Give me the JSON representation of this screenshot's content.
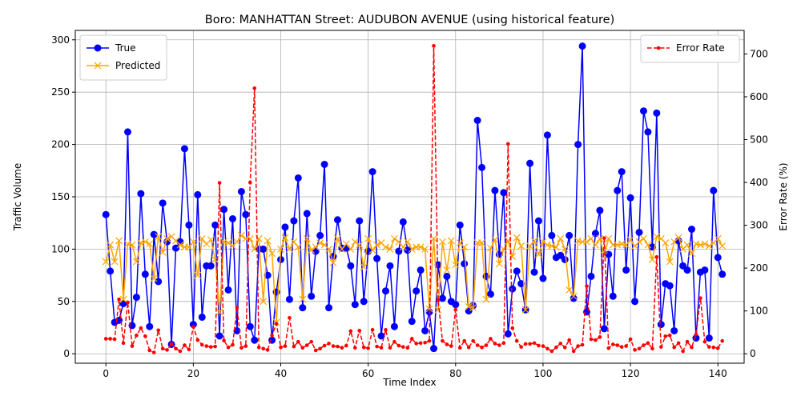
{
  "chart_data": {
    "type": "line",
    "title": "Boro: MANHATTAN Street: AUDUBON AVENUE (using historical feature)",
    "xlabel": "Time Index",
    "ylabel": "Traffic Volume",
    "y2label": "Error Rate (%)",
    "xlim": [
      -7,
      146
    ],
    "ylim": [
      -9,
      309
    ],
    "y2lim": [
      -22,
      755
    ],
    "xticks": [
      0,
      20,
      40,
      60,
      80,
      100,
      120,
      140
    ],
    "yticks": [
      0,
      50,
      100,
      150,
      200,
      250,
      300
    ],
    "y2ticks": [
      0,
      100,
      200,
      300,
      400,
      500,
      600,
      700
    ],
    "grid": true,
    "legend_left_placement": "upper-left",
    "legend_right_placement": "upper-right",
    "series": [
      {
        "name": "True",
        "axis": "left",
        "color": "#0000ff",
        "marker": "circle",
        "linestyle": "solid",
        "values": [
          133,
          79,
          30,
          32,
          48,
          212,
          27,
          54,
          153,
          76,
          26,
          114,
          69,
          144,
          107,
          9,
          101,
          107,
          196,
          123,
          28,
          152,
          35,
          84,
          84,
          123,
          17,
          138,
          61,
          129,
          22,
          155,
          133,
          26,
          13,
          100,
          100,
          75,
          13,
          59,
          90,
          121,
          52,
          127,
          168,
          44,
          134,
          55,
          98,
          113,
          181,
          44,
          93,
          128,
          101,
          101,
          84,
          47,
          127,
          50,
          98,
          174,
          91,
          17,
          60,
          84,
          26,
          98,
          126,
          99,
          31,
          60,
          80,
          22,
          40,
          5,
          85,
          53,
          74,
          50,
          47,
          123,
          86,
          41,
          46,
          223,
          178,
          74,
          57,
          156,
          95,
          154,
          19,
          62,
          79,
          67,
          42,
          182,
          78,
          127,
          72,
          209,
          113,
          92,
          94,
          90,
          113,
          53,
          200,
          294,
          40,
          74,
          115,
          137,
          24,
          95,
          55,
          156,
          174,
          80,
          149,
          50,
          116,
          232,
          212,
          102,
          230,
          28,
          67,
          65,
          22,
          108,
          84,
          80,
          119,
          15,
          78,
          80,
          15,
          156,
          92,
          76
        ]
      },
      {
        "name": "Predicted",
        "axis": "left",
        "color": "#ffa500",
        "marker": "x",
        "linestyle": "solid",
        "values": [
          88,
          104,
          88,
          108,
          52,
          105,
          104,
          88,
          106,
          107,
          105,
          72,
          112,
          97,
          110,
          112,
          108,
          104,
          102,
          102,
          107,
          75,
          110,
          105,
          109,
          90,
          40,
          107,
          106,
          103,
          107,
          113,
          110,
          110,
          100,
          110,
          50,
          108,
          96,
          30,
          100,
          111,
          100,
          107,
          102,
          52,
          110,
          99,
          102,
          106,
          104,
          100,
          87,
          110,
          100,
          105,
          100,
          107,
          104,
          83,
          110,
          99,
          104,
          106,
          102,
          100,
          110,
          107,
          102,
          107,
          100,
          102,
          102,
          100,
          43,
          110,
          42,
          107,
          80,
          108,
          85,
          106,
          102,
          45,
          44,
          106,
          106,
          52,
          101,
          109,
          86,
          100,
          108,
          93,
          111,
          103,
          42,
          103,
          108,
          95,
          107,
          104,
          103,
          102,
          110,
          100,
          61,
          55,
          108,
          107,
          107,
          110,
          104,
          110,
          94,
          110,
          104,
          104,
          105,
          104,
          109,
          103,
          107,
          110,
          104,
          90,
          112,
          110,
          106,
          88,
          107,
          111,
          100,
          104,
          96,
          105,
          104,
          105,
          103,
          106,
          110,
          103
        ]
      },
      {
        "name": "Error Rate",
        "axis": "right",
        "color": "#ff0000",
        "marker": "dot",
        "linestyle": "dashed",
        "values": [
          35,
          35,
          34,
          127,
          25,
          120,
          18,
          43,
          60,
          41,
          8,
          3,
          55,
          12,
          9,
          23,
          12,
          6,
          20,
          10,
          63,
          32,
          21,
          18,
          16,
          17,
          399,
          31,
          15,
          21,
          108,
          14,
          18,
          400,
          620,
          15,
          12,
          9,
          43,
          70,
          15,
          18,
          84,
          17,
          28,
          14,
          20,
          28,
          8,
          12,
          19,
          24,
          18,
          17,
          14,
          19,
          53,
          14,
          54,
          15,
          13,
          56,
          17,
          14,
          56,
          14,
          28,
          19,
          16,
          14,
          35,
          24,
          25,
          26,
          30,
          719,
          125,
          30,
          22,
          18,
          103,
          14,
          30,
          15,
          30,
          20,
          15,
          20,
          35,
          24,
          20,
          25,
          490,
          60,
          30,
          16,
          23,
          23,
          25,
          19,
          18,
          12,
          6,
          15,
          24,
          15,
          32,
          6,
          18,
          21,
          158,
          34,
          32,
          39,
          270,
          13,
          22,
          20,
          16,
          18,
          34,
          9,
          12,
          20,
          25,
          12,
          226,
          16,
          41,
          43,
          15,
          25,
          6,
          28,
          15,
          45,
          130,
          28,
          16,
          15,
          13,
          30
        ]
      }
    ]
  }
}
